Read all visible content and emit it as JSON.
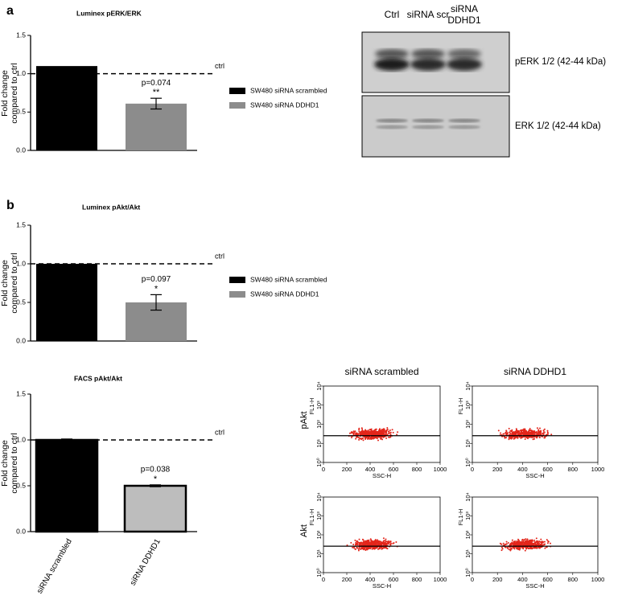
{
  "panel_labels": [
    "a",
    "b"
  ],
  "chart_data": [
    {
      "type": "bar",
      "title": "Luminex pERK/ERK",
      "y_label": "Fold change compared to ctrl",
      "categories": [
        null,
        null
      ],
      "values": [
        1.1,
        0.61
      ],
      "errors": [
        null,
        0.07
      ],
      "colors": [
        "#000000",
        "#8c8c8c"
      ],
      "legend": [
        "SW480 siRNA scrambled",
        "SW480 siRNA DDHD1"
      ],
      "p_values": [
        null,
        "p=0.074"
      ],
      "significance": [
        null,
        "**"
      ],
      "reference": {
        "value": 1.0,
        "label": "ctrl"
      },
      "ylim": [
        0,
        1.5
      ],
      "yticks": [
        {
          "value": 0,
          "label": "0.0"
        },
        {
          "value": 0.5,
          "label": "0.5"
        },
        {
          "value": 1,
          "label": "1.0"
        },
        {
          "value": 1.5,
          "label": "1.5"
        }
      ]
    },
    {
      "type": "bar",
      "title": "Luminex pAkt/Akt",
      "y_label": "Fold change compared to ctrl",
      "categories": [
        null,
        null
      ],
      "values": [
        1.0,
        0.5
      ],
      "errors": [
        null,
        0.1
      ],
      "colors": [
        "#000000",
        "#8c8c8c"
      ],
      "legend": [
        "SW480 siRNA scrambled",
        "SW480 siRNA DDHD1"
      ],
      "p_values": [
        null,
        "p=0.097"
      ],
      "significance": [
        null,
        "*"
      ],
      "reference": {
        "value": 1.0,
        "label": "ctrl"
      },
      "ylim": [
        0,
        1.5
      ],
      "yticks": [
        {
          "value": 0,
          "label": "0.0"
        },
        {
          "value": 0.5,
          "label": "0.5"
        },
        {
          "value": 1,
          "label": "1.0"
        },
        {
          "value": 1.5,
          "label": "1.5"
        }
      ]
    },
    {
      "type": "bar",
      "title": "FACS pAkt/Akt",
      "y_label": "Fold change compared to ctrl",
      "categories": [
        "siRNA scrambled",
        "siRNA DDHD1"
      ],
      "values": [
        1.0,
        0.5
      ],
      "errors": [
        0.01,
        0.01
      ],
      "colors": [
        "#000000",
        "#bdbdbd"
      ],
      "bar_outline": "#000000",
      "p_values": [
        null,
        "p=0.038"
      ],
      "significance": [
        null,
        "*"
      ],
      "reference": {
        "value": 1.0,
        "label": "ctrl"
      },
      "ylim": [
        0,
        1.5
      ],
      "yticks": [
        {
          "value": 0,
          "label": "0.0"
        },
        {
          "value": 0.5,
          "label": "0.5"
        },
        {
          "value": 1,
          "label": "1.0"
        },
        {
          "value": 1.5,
          "label": "1.5"
        }
      ]
    }
  ],
  "blot": {
    "lanes": [
      "Ctrl",
      "siRNA scr",
      "siRNA DDHD1"
    ],
    "bands": [
      "pERK 1/2 (42-44 kDa)",
      "ERK 1/2 (42-44 kDa)"
    ]
  },
  "facs": {
    "columns": [
      "siRNA scrambled",
      "siRNA DDHD1"
    ],
    "rows": [
      "pAkt",
      "Akt"
    ],
    "x_label": "SSC-H",
    "y_label": "FL1-H",
    "xlim": [
      0,
      1000
    ],
    "ylim": [
      1,
      10000
    ],
    "yscale": "log",
    "xticks": [
      0,
      200,
      400,
      600,
      800,
      1000
    ],
    "yticks": [
      {
        "value": 1,
        "label": "10⁰"
      },
      {
        "value": 10,
        "label": "10¹"
      },
      {
        "value": 100,
        "label": "10²"
      },
      {
        "value": 1000,
        "label": "10³"
      },
      {
        "value": 10000,
        "label": "10⁴"
      }
    ]
  }
}
